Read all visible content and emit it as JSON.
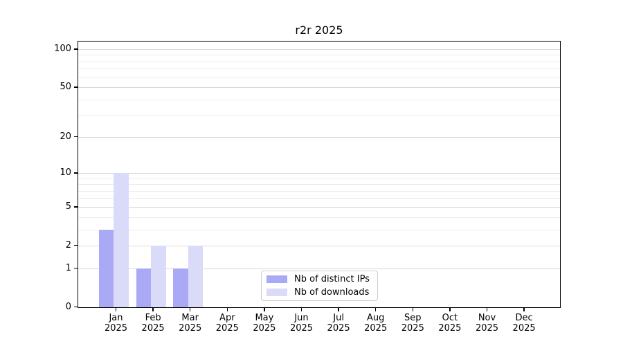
{
  "title": "r2r 2025",
  "chart_data": {
    "type": "bar",
    "title": "r2r 2025",
    "categories": [
      "Jan",
      "Feb",
      "Mar",
      "Apr",
      "May",
      "Jun",
      "Jul",
      "Aug",
      "Sep",
      "Oct",
      "Nov",
      "Dec"
    ],
    "year_label": "2025",
    "series": [
      {
        "name": "Nb of distinct IPs",
        "color": "#a9a9f6",
        "values": [
          3,
          1,
          1,
          0,
          0,
          0,
          0,
          0,
          0,
          0,
          0,
          0
        ]
      },
      {
        "name": "Nb of downloads",
        "color": "#dadaf9",
        "values": [
          10,
          2,
          2,
          0,
          0,
          0,
          0,
          0,
          0,
          0,
          0,
          0
        ]
      }
    ],
    "xlabel": "",
    "ylabel": "",
    "y_ticks": [
      0,
      1,
      2,
      5,
      10,
      20,
      50,
      100
    ],
    "y_minor_ticks": [
      3,
      4,
      6,
      7,
      8,
      9,
      30,
      40,
      60,
      70,
      80,
      90
    ],
    "ylim": [
      0,
      114
    ],
    "scale": "log1p",
    "grid": true,
    "legend_position": "lower center"
  },
  "colors": {
    "bar_distinct_ips": "#a9a9f6",
    "bar_downloads": "#dadaf9",
    "grid_major": "#d8d8d8",
    "grid_minor": "#ebebeb",
    "spine": "#000000",
    "legend_border": "#cccccc",
    "background": "#ffffff",
    "text": "#000000"
  }
}
